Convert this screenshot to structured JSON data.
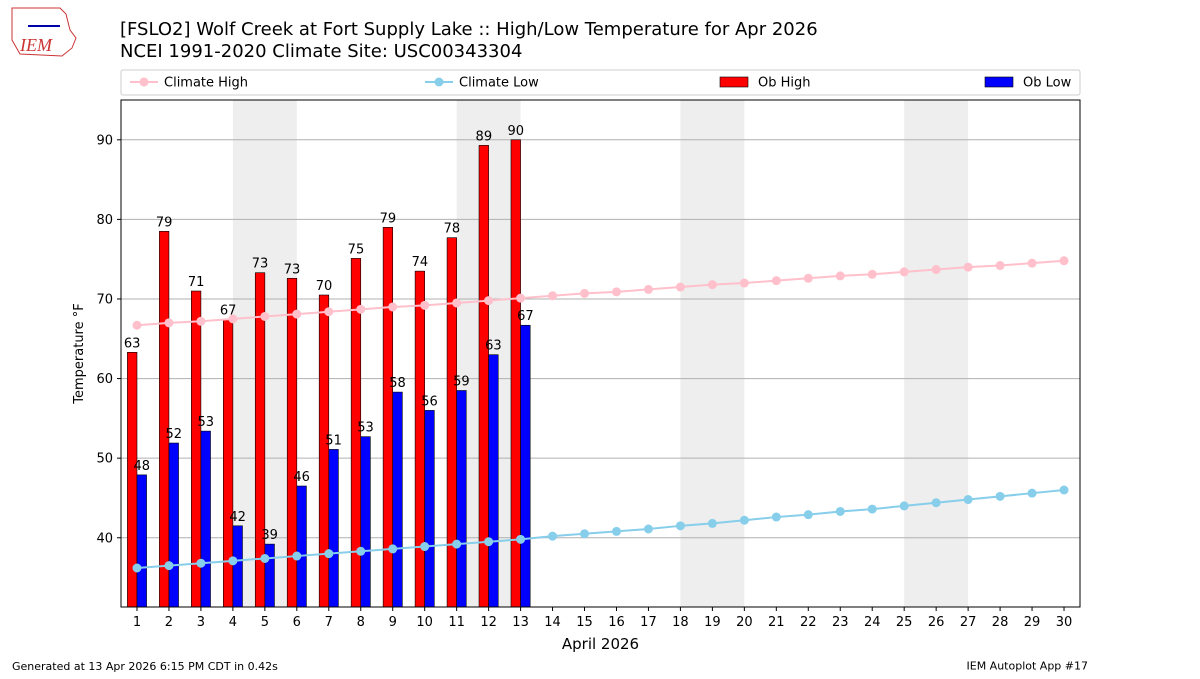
{
  "logo_text": "IEM",
  "chart_data": {
    "type": "bar",
    "title": "[FSLO2] Wolf Creek at Fort Supply Lake :: High/Low Temperature for Apr 2026",
    "subtitle": "NCEI 1991-2020 Climate Site: USC00343304",
    "ylabel": "Temperature °F",
    "xlabel": "April 2026",
    "categories": [
      "1",
      "2",
      "3",
      "4",
      "5",
      "6",
      "7",
      "8",
      "9",
      "10",
      "11",
      "12",
      "13",
      "14",
      "15",
      "16",
      "17",
      "18",
      "19",
      "20",
      "21",
      "22",
      "23",
      "24",
      "25",
      "26",
      "27",
      "28",
      "29",
      "30"
    ],
    "ylim": [
      31.3,
      95
    ],
    "yticks": [
      40,
      50,
      60,
      70,
      80,
      90
    ],
    "grid": true,
    "weekend_spans": [
      [
        4,
        5
      ],
      [
        11,
        12
      ],
      [
        18,
        19
      ],
      [
        25,
        26
      ]
    ],
    "series": [
      {
        "name": "Climate High",
        "kind": "line",
        "color": "#ffc0cb",
        "values": [
          66.7,
          67.0,
          67.2,
          67.5,
          67.8,
          68.1,
          68.4,
          68.7,
          69.0,
          69.2,
          69.5,
          69.8,
          70.1,
          70.4,
          70.7,
          70.9,
          71.2,
          71.5,
          71.8,
          72.0,
          72.3,
          72.6,
          72.9,
          73.1,
          73.4,
          73.7,
          74.0,
          74.2,
          74.5,
          74.8
        ]
      },
      {
        "name": "Climate Low",
        "kind": "line",
        "color": "#87ceeb",
        "values": [
          36.2,
          36.5,
          36.8,
          37.1,
          37.4,
          37.7,
          38.0,
          38.3,
          38.6,
          38.9,
          39.2,
          39.5,
          39.8,
          40.2,
          40.5,
          40.8,
          41.1,
          41.5,
          41.8,
          42.2,
          42.6,
          42.9,
          43.3,
          43.6,
          44.0,
          44.4,
          44.8,
          45.2,
          45.6,
          46.0
        ]
      },
      {
        "name": "Ob High",
        "kind": "bar",
        "color": "#ff0000",
        "values": [
          63.3,
          78.5,
          71.0,
          67.4,
          73.3,
          72.6,
          70.5,
          75.1,
          79.0,
          73.5,
          77.7,
          89.3,
          90.0,
          null,
          null,
          null,
          null,
          null,
          null,
          null,
          null,
          null,
          null,
          null,
          null,
          null,
          null,
          null,
          null,
          null
        ],
        "value_labels": [
          "63",
          "79",
          "71",
          "67",
          "73",
          "73",
          "70",
          "75",
          "79",
          "74",
          "78",
          "89",
          "90",
          null,
          null,
          null,
          null,
          null,
          null,
          null,
          null,
          null,
          null,
          null,
          null,
          null,
          null,
          null,
          null,
          null
        ]
      },
      {
        "name": "Ob Low",
        "kind": "bar",
        "color": "#0000ff",
        "values": [
          47.9,
          51.9,
          53.4,
          41.5,
          39.2,
          46.5,
          51.1,
          52.7,
          58.3,
          56.0,
          58.5,
          63.0,
          66.7,
          null,
          null,
          null,
          null,
          null,
          null,
          null,
          null,
          null,
          null,
          null,
          null,
          null,
          null,
          null,
          null,
          null
        ],
        "value_labels": [
          "48",
          "52",
          "53",
          "42",
          "39",
          "46",
          "51",
          "53",
          "58",
          "56",
          "59",
          "63",
          "67",
          null,
          null,
          null,
          null,
          null,
          null,
          null,
          null,
          null,
          null,
          null,
          null,
          null,
          null,
          null,
          null,
          null
        ]
      }
    ],
    "footer_left": "Generated at 13 Apr 2026 6:15 PM CDT in 0.42s",
    "footer_right": "IEM Autoplot App #17"
  }
}
